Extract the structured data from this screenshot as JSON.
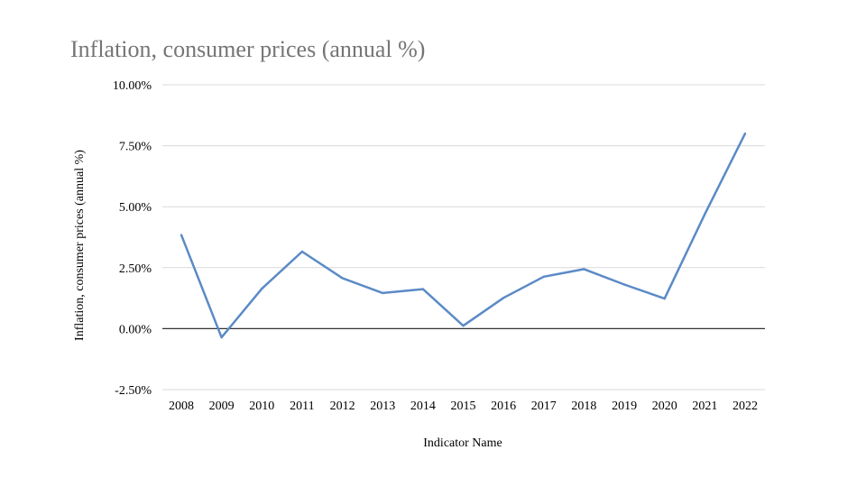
{
  "chart_data": {
    "type": "line",
    "title": "Inflation, consumer prices (annual %)",
    "xlabel": "Indicator Name",
    "ylabel": "Inflation, consumer prices (annual %)",
    "categories": [
      "2008",
      "2009",
      "2010",
      "2011",
      "2012",
      "2013",
      "2014",
      "2015",
      "2016",
      "2017",
      "2018",
      "2019",
      "2020",
      "2021",
      "2022"
    ],
    "series": [
      {
        "name": "Inflation, consumer prices (annual %)",
        "values": [
          3.84,
          -0.36,
          1.64,
          3.16,
          2.07,
          1.46,
          1.62,
          0.12,
          1.26,
          2.13,
          2.44,
          1.81,
          1.23,
          4.7,
          8.0
        ]
      }
    ],
    "ylim": [
      -2.5,
      10
    ],
    "yticks": [
      -2.5,
      0,
      2.5,
      5,
      7.5,
      10
    ],
    "ytick_labels": [
      "-2.50%",
      "0.00%",
      "2.50%",
      "5.00%",
      "7.50%",
      "10.00%"
    ],
    "grid": true,
    "line_color": "#5b8ac6",
    "grid_color": "#d9d9d9",
    "zero_line_color": "#333333"
  }
}
